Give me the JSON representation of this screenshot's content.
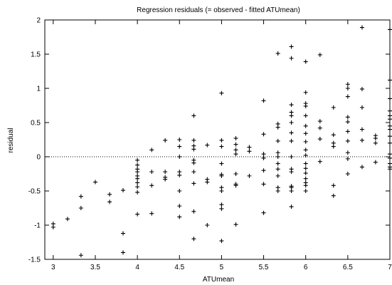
{
  "chart_data": {
    "type": "scatter",
    "title": "Regression residuals (= observed - fitted ATUmean)",
    "xlabel": "ATUmean",
    "ylabel": "residual",
    "xlim": [
      2.9,
      7.0
    ],
    "ylim": [
      -1.5,
      2.0
    ],
    "xticks": [
      3,
      3.5,
      4,
      4.5,
      5,
      5.5,
      6,
      6.5,
      7
    ],
    "xtick_labels": [
      "3",
      "3.5",
      "4",
      "4.5",
      "5",
      "5.5",
      "6",
      "6.5",
      "7"
    ],
    "yticks": [
      -1.5,
      -1,
      -0.5,
      0,
      0.5,
      1,
      1.5,
      2
    ],
    "ytick_labels": [
      "-1.5",
      "-1",
      "-0.5",
      "0",
      "0.5",
      "1",
      "1.5",
      "2"
    ],
    "reference_line": 0,
    "marker": "plus",
    "points": [
      [
        3.0,
        -0.98
      ],
      [
        3.0,
        -1.03
      ],
      [
        3.17,
        -0.91
      ],
      [
        3.33,
        -0.58
      ],
      [
        3.33,
        -0.75
      ],
      [
        3.33,
        -1.44
      ],
      [
        3.5,
        -0.37
      ],
      [
        3.67,
        -0.55
      ],
      [
        3.67,
        -0.66
      ],
      [
        3.83,
        -0.49
      ],
      [
        3.83,
        -1.12
      ],
      [
        3.83,
        -1.4
      ],
      [
        4.0,
        -0.05
      ],
      [
        4.0,
        -0.12
      ],
      [
        4.0,
        -0.18
      ],
      [
        4.0,
        -0.22
      ],
      [
        4.0,
        -0.28
      ],
      [
        4.0,
        -0.32
      ],
      [
        4.0,
        -0.38
      ],
      [
        4.0,
        -0.44
      ],
      [
        4.0,
        -0.52
      ],
      [
        4.0,
        -0.84
      ],
      [
        4.17,
        0.1
      ],
      [
        4.17,
        -0.22
      ],
      [
        4.17,
        -0.42
      ],
      [
        4.17,
        -0.83
      ],
      [
        4.33,
        0.24
      ],
      [
        4.33,
        -0.22
      ],
      [
        4.33,
        -0.3
      ],
      [
        4.33,
        -0.33
      ],
      [
        4.5,
        0.25
      ],
      [
        4.5,
        0.15
      ],
      [
        4.5,
        0.0
      ],
      [
        4.5,
        -0.22
      ],
      [
        4.5,
        -0.27
      ],
      [
        4.5,
        -0.5
      ],
      [
        4.5,
        -0.72
      ],
      [
        4.5,
        -0.88
      ],
      [
        4.67,
        0.6
      ],
      [
        4.67,
        0.24
      ],
      [
        4.67,
        0.16
      ],
      [
        4.67,
        0.11
      ],
      [
        4.67,
        -0.05
      ],
      [
        4.67,
        -0.09
      ],
      [
        4.67,
        -0.22
      ],
      [
        4.67,
        -0.39
      ],
      [
        4.67,
        -0.8
      ],
      [
        4.67,
        -1.2
      ],
      [
        4.83,
        0.17
      ],
      [
        4.83,
        -0.33
      ],
      [
        4.83,
        -0.37
      ],
      [
        4.83,
        -1.0
      ],
      [
        5.0,
        0.93
      ],
      [
        5.0,
        0.24
      ],
      [
        5.0,
        0.15
      ],
      [
        5.0,
        -0.1
      ],
      [
        5.0,
        -0.26
      ],
      [
        5.0,
        -0.28
      ],
      [
        5.0,
        -0.45
      ],
      [
        5.0,
        -0.5
      ],
      [
        5.0,
        -0.7
      ],
      [
        5.0,
        -0.76
      ],
      [
        5.0,
        -1.23
      ],
      [
        5.17,
        0.27
      ],
      [
        5.17,
        0.18
      ],
      [
        5.17,
        0.1
      ],
      [
        5.17,
        0.04
      ],
      [
        5.17,
        -0.25
      ],
      [
        5.17,
        -0.4
      ],
      [
        5.17,
        -0.42
      ],
      [
        5.17,
        -0.99
      ],
      [
        5.33,
        0.14
      ],
      [
        5.33,
        0.08
      ],
      [
        5.33,
        -0.28
      ],
      [
        5.5,
        0.82
      ],
      [
        5.5,
        0.33
      ],
      [
        5.5,
        0.04
      ],
      [
        5.5,
        -0.02
      ],
      [
        5.5,
        -0.2
      ],
      [
        5.5,
        -0.4
      ],
      [
        5.5,
        -0.82
      ],
      [
        5.67,
        1.51
      ],
      [
        5.67,
        0.48
      ],
      [
        5.67,
        0.43
      ],
      [
        5.67,
        0.23
      ],
      [
        5.67,
        0.06
      ],
      [
        5.67,
        0.0
      ],
      [
        5.67,
        -0.1
      ],
      [
        5.67,
        -0.18
      ],
      [
        5.67,
        -0.28
      ],
      [
        5.67,
        -0.45
      ],
      [
        5.67,
        -0.5
      ],
      [
        5.83,
        1.61
      ],
      [
        5.83,
        1.44
      ],
      [
        5.83,
        0.76
      ],
      [
        5.83,
        0.65
      ],
      [
        5.83,
        0.6
      ],
      [
        5.83,
        0.5
      ],
      [
        5.83,
        0.35
      ],
      [
        5.83,
        0.23
      ],
      [
        5.83,
        0.0
      ],
      [
        5.83,
        -0.18
      ],
      [
        5.83,
        -0.22
      ],
      [
        5.83,
        -0.43
      ],
      [
        5.83,
        -0.45
      ],
      [
        5.83,
        -0.5
      ],
      [
        5.83,
        -0.73
      ],
      [
        6.0,
        1.39
      ],
      [
        6.0,
        0.94
      ],
      [
        6.0,
        0.78
      ],
      [
        6.0,
        0.74
      ],
      [
        6.0,
        0.6
      ],
      [
        6.0,
        0.45
      ],
      [
        6.0,
        0.34
      ],
      [
        6.0,
        0.22
      ],
      [
        6.0,
        0.1
      ],
      [
        6.0,
        0.02
      ],
      [
        6.0,
        -0.1
      ],
      [
        6.0,
        -0.17
      ],
      [
        6.0,
        -0.24
      ],
      [
        6.0,
        -0.32
      ],
      [
        6.0,
        -0.38
      ],
      [
        6.0,
        -0.42
      ],
      [
        6.0,
        -0.5
      ],
      [
        6.17,
        1.49
      ],
      [
        6.17,
        0.52
      ],
      [
        6.17,
        0.42
      ],
      [
        6.17,
        0.26
      ],
      [
        6.17,
        -0.07
      ],
      [
        6.33,
        0.72
      ],
      [
        6.33,
        0.32
      ],
      [
        6.33,
        0.2
      ],
      [
        6.33,
        0.15
      ],
      [
        6.33,
        -0.42
      ],
      [
        6.33,
        -0.57
      ],
      [
        6.5,
        1.06
      ],
      [
        6.5,
        1.0
      ],
      [
        6.5,
        0.88
      ],
      [
        6.5,
        0.58
      ],
      [
        6.5,
        0.51
      ],
      [
        6.5,
        0.37
      ],
      [
        6.5,
        0.23
      ],
      [
        6.5,
        0.06
      ],
      [
        6.5,
        -0.03
      ],
      [
        6.5,
        -0.25
      ],
      [
        6.67,
        1.89
      ],
      [
        6.67,
        0.99
      ],
      [
        6.67,
        0.72
      ],
      [
        6.67,
        0.4
      ],
      [
        6.67,
        0.24
      ],
      [
        6.67,
        -0.15
      ],
      [
        6.83,
        0.31
      ],
      [
        6.83,
        0.27
      ],
      [
        6.83,
        0.2
      ],
      [
        6.83,
        -0.08
      ],
      [
        7.0,
        1.86
      ],
      [
        7.0,
        1.12
      ],
      [
        7.0,
        0.85
      ],
      [
        7.0,
        0.67
      ],
      [
        7.0,
        0.6
      ],
      [
        7.0,
        0.55
      ],
      [
        7.0,
        0.45
      ],
      [
        7.0,
        0.4
      ],
      [
        7.0,
        0.3
      ],
      [
        7.0,
        0.2
      ],
      [
        7.0,
        0.04
      ],
      [
        7.0,
        -0.02
      ],
      [
        7.0,
        -0.1
      ],
      [
        7.0,
        -0.15
      ],
      [
        7.0,
        -0.18
      ]
    ]
  }
}
